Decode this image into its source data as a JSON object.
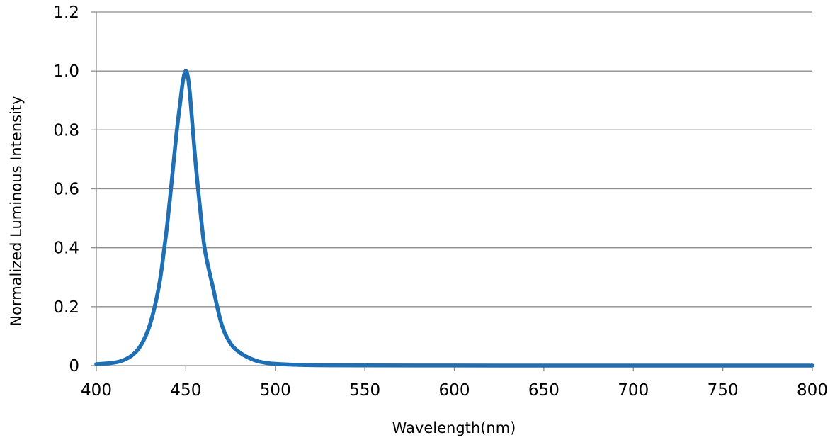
{
  "chart_data": {
    "type": "line",
    "title": "",
    "xlabel": "Wavelength(nm)",
    "ylabel": "Normalized Luminous Intensity",
    "xlim": [
      400,
      800
    ],
    "ylim": [
      0,
      1.2
    ],
    "x_ticks": [
      400,
      450,
      500,
      550,
      600,
      650,
      700,
      750,
      800
    ],
    "x_tick_labels": [
      "400",
      "450",
      "500",
      "550",
      "600",
      "650",
      "700",
      "750",
      "800"
    ],
    "y_ticks": [
      0,
      0.2,
      0.4,
      0.6,
      0.8,
      1.0,
      1.2
    ],
    "y_tick_labels": [
      "0",
      "0.2",
      "0.4",
      "0.6",
      "0.8",
      "1.0",
      "1.2"
    ],
    "grid": "horizontal",
    "line_color": "#1f6fb5",
    "series": [
      {
        "x": [
          400,
          405,
          410,
          415,
          420,
          425,
          430,
          435,
          438,
          440,
          443,
          445,
          447,
          448,
          449,
          450,
          451,
          452,
          453,
          455,
          457,
          460,
          462,
          465,
          470,
          475,
          480,
          485,
          490,
          495,
          500,
          510,
          520,
          530,
          550,
          600,
          650,
          700,
          750,
          800
        ],
        "y": [
          0.005,
          0.007,
          0.01,
          0.018,
          0.035,
          0.07,
          0.14,
          0.27,
          0.4,
          0.5,
          0.68,
          0.8,
          0.9,
          0.95,
          0.985,
          1.0,
          0.985,
          0.94,
          0.87,
          0.72,
          0.59,
          0.42,
          0.35,
          0.27,
          0.14,
          0.075,
          0.045,
          0.027,
          0.015,
          0.009,
          0.006,
          0.003,
          0.0015,
          0.001,
          0.0005,
          0.0002,
          0.0001,
          0.0001,
          0.0001,
          0.0001
        ]
      }
    ]
  }
}
